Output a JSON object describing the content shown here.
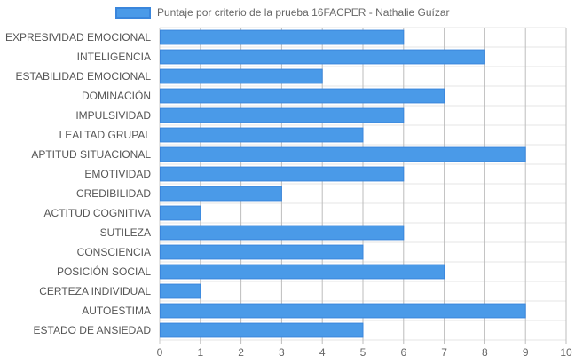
{
  "chart_data": {
    "type": "bar",
    "orientation": "horizontal",
    "series": [
      {
        "name": "Puntaje por criterio de la prueba 16FACPER - Nathalie Guízar",
        "color": "#4a9ae8",
        "values": [
          6,
          8,
          4,
          7,
          6,
          5,
          9,
          6,
          3,
          1,
          6,
          5,
          7,
          1,
          9,
          5
        ]
      }
    ],
    "categories": [
      "EXPRESIVIDAD EMOCIONAL",
      "INTELIGENCIA",
      "ESTABILIDAD EMOCIONAL",
      "DOMINACIÓN",
      "IMPULSIVIDAD",
      "LEALTAD GRUPAL",
      "APTITUD SITUACIONAL",
      "EMOTIVIDAD",
      "CREDIBILIDAD",
      "ACTITUD COGNITIVA",
      "SUTILEZA",
      "CONSCIENCIA",
      "POSICIÓN SOCIAL",
      "CERTEZA INDIVIDUAL",
      "AUTOESTIMA",
      "ESTADO DE ANSIEDAD"
    ],
    "x_ticks": [
      "0",
      "1",
      "2",
      "3",
      "4",
      "5",
      "6",
      "7",
      "8",
      "9",
      "10"
    ],
    "xlim": [
      0,
      10
    ],
    "grid": true,
    "legend_position": "top"
  },
  "colors": {
    "bar_fill": "#4a9ae8",
    "bar_border": "#3a86dc",
    "grid": "#e4e4e4",
    "axis": "#c8c8c8"
  }
}
